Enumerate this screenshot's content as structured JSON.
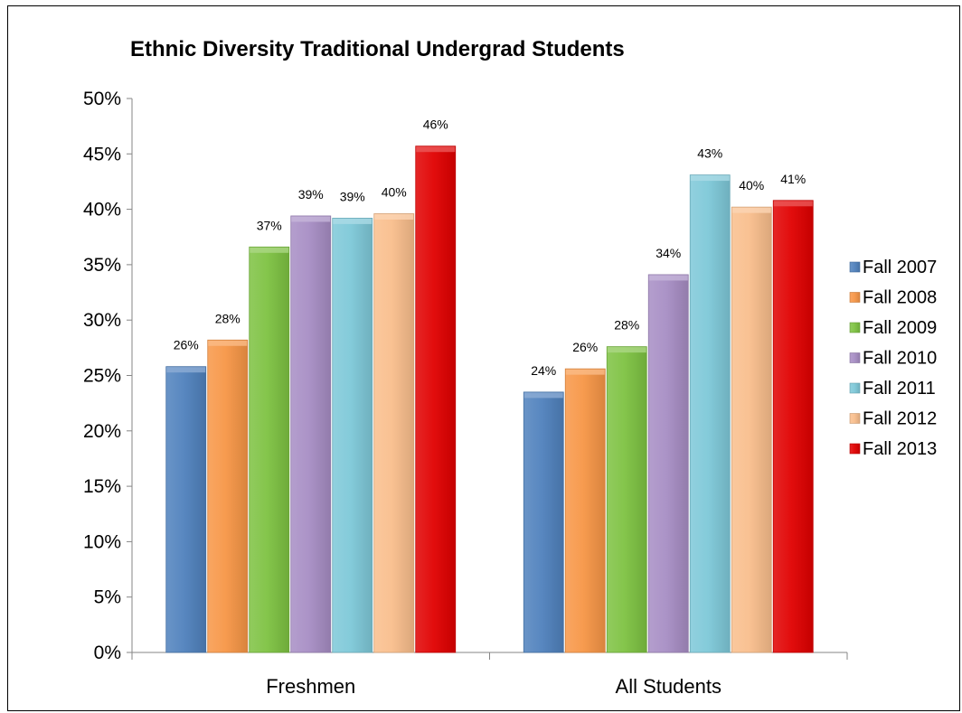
{
  "chart_data": {
    "type": "bar",
    "title": "Ethnic Diversity Traditional Undergrad Students",
    "xlabel": "",
    "ylabel": "",
    "ylim": [
      0,
      0.5
    ],
    "ytick_step": 0.05,
    "categories": [
      "Freshmen",
      "All Students"
    ],
    "series": [
      {
        "name": "Fall 2007",
        "color": "#4f81bd",
        "values": [
          0.258,
          0.235
        ],
        "labels": [
          "26%",
          "24%"
        ]
      },
      {
        "name": "Fall 2008",
        "color": "#f79646",
        "values": [
          0.282,
          0.256
        ],
        "labels": [
          "28%",
          "26%"
        ]
      },
      {
        "name": "Fall 2009",
        "color": "#7dc242",
        "values": [
          0.366,
          0.276
        ],
        "labels": [
          "37%",
          "28%"
        ]
      },
      {
        "name": "Fall 2010",
        "color": "#a78dc4",
        "values": [
          0.394,
          0.341
        ],
        "labels": [
          "39%",
          "34%"
        ]
      },
      {
        "name": "Fall 2011",
        "color": "#7ec8d8",
        "values": [
          0.392,
          0.431
        ],
        "labels": [
          "39%",
          "43%"
        ]
      },
      {
        "name": "Fall 2012",
        "color": "#f9be8c",
        "values": [
          0.396,
          0.402
        ],
        "labels": [
          "40%",
          "40%"
        ]
      },
      {
        "name": "Fall 2013",
        "color": "#e00000",
        "values": [
          0.457,
          0.408
        ],
        "labels": [
          "46%",
          "41%"
        ]
      }
    ],
    "grid": false,
    "legend_position": "right"
  }
}
